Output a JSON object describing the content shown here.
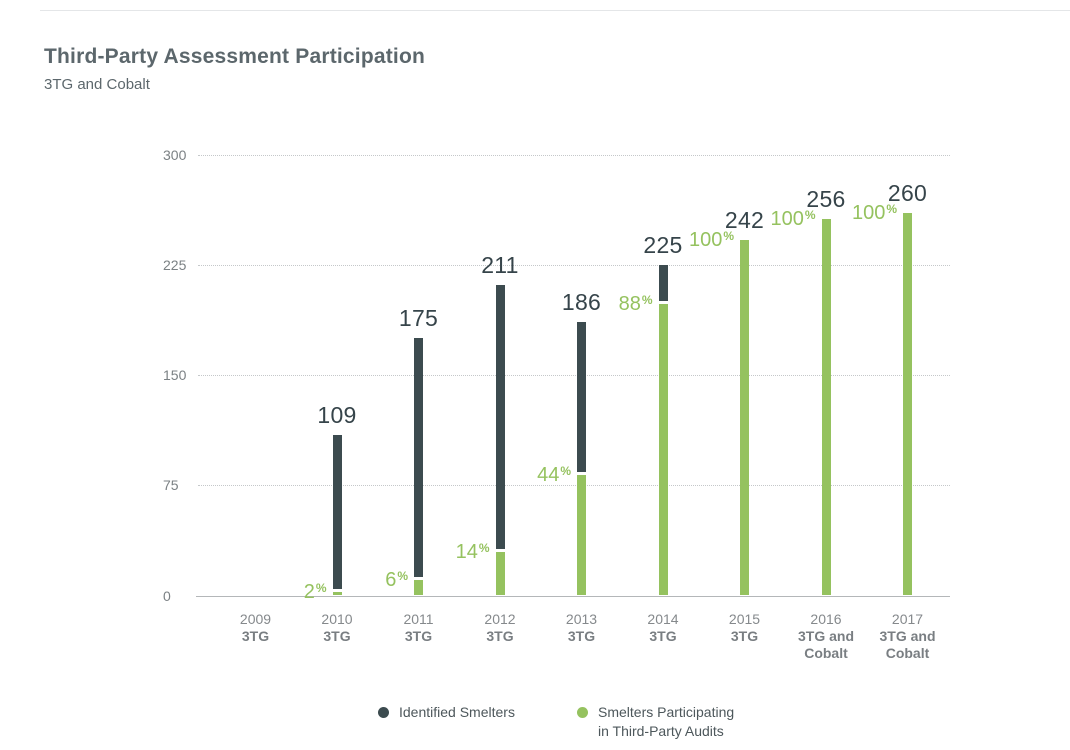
{
  "header": {
    "title": "Third-Party Assessment Participation",
    "subtitle": "3TG and Cobalt"
  },
  "chart_data": {
    "type": "bar",
    "title": "Third-Party Assessment Participation",
    "subtitle": "3TG and Cobalt",
    "ylim": [
      0,
      300
    ],
    "yticks": [
      0,
      75,
      150,
      225,
      300
    ],
    "grid": "horizontal-dotted",
    "legend_position": "bottom",
    "categories": [
      {
        "year": "2009",
        "scope_lines": [
          "3TG"
        ]
      },
      {
        "year": "2010",
        "scope_lines": [
          "3TG"
        ]
      },
      {
        "year": "2011",
        "scope_lines": [
          "3TG"
        ]
      },
      {
        "year": "2012",
        "scope_lines": [
          "3TG"
        ]
      },
      {
        "year": "2013",
        "scope_lines": [
          "3TG"
        ]
      },
      {
        "year": "2014",
        "scope_lines": [
          "3TG"
        ]
      },
      {
        "year": "2015",
        "scope_lines": [
          "3TG"
        ]
      },
      {
        "year": "2016",
        "scope_lines": [
          "3TG and",
          "Cobalt"
        ]
      },
      {
        "year": "2017",
        "scope_lines": [
          "3TG and",
          "Cobalt"
        ]
      }
    ],
    "series": [
      {
        "name": "Identified Smelters",
        "color": "#3c4b4f",
        "values": [
          null,
          109,
          175,
          211,
          186,
          225,
          242,
          256,
          260
        ],
        "value_labels": [
          "",
          "109",
          "175",
          "211",
          "186",
          "225",
          "242",
          "256",
          "260"
        ]
      },
      {
        "name": "Smelters Participating in Third-Party Audits",
        "color": "#95c25f",
        "percent_of_identified": [
          null,
          2,
          6,
          14,
          44,
          88,
          100,
          100,
          100
        ],
        "percent_labels": [
          "",
          "2",
          "6",
          "14",
          "44",
          "88",
          "100",
          "100",
          "100"
        ],
        "percent_suffix": "%"
      }
    ],
    "legend": [
      {
        "color": "#3c4b4f",
        "lines": [
          "Identified Smelters"
        ]
      },
      {
        "color": "#95c25f",
        "lines": [
          "Smelters Participating",
          "in Third-Party Audits"
        ]
      }
    ]
  }
}
